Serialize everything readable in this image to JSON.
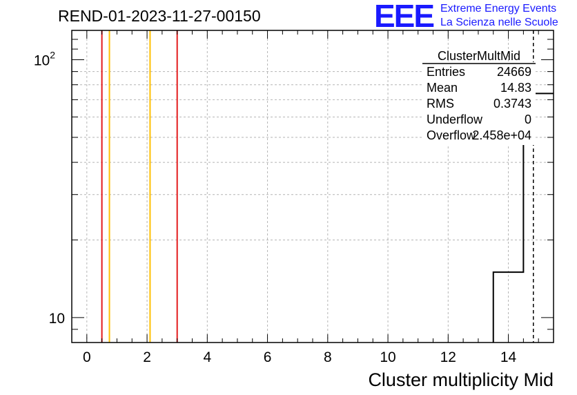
{
  "header": {
    "run_title": "REND-01-2023-11-27-00150",
    "logo_text": "EEE",
    "logo_line_1": "Extreme Energy Events",
    "logo_line_2": "La Scienza nelle Scuole"
  },
  "stats_box": {
    "title": "ClusterMultMid",
    "rows": [
      {
        "label": "Entries",
        "value": "24669"
      },
      {
        "label": "Mean",
        "value": "14.83"
      },
      {
        "label": "RMS",
        "value": "0.3743"
      },
      {
        "label": "Underflow",
        "value": "0"
      },
      {
        "label": "Overflow",
        "value": "2.458e+04"
      }
    ]
  },
  "chart_data": {
    "type": "histogram",
    "title": "REND-01-2023-11-27-00150",
    "xlabel": "Cluster multiplicity Mid",
    "ylabel": "",
    "xlim": [
      -0.5,
      15.5
    ],
    "ylim": [
      8,
      130
    ],
    "y_scale": "log",
    "grid": true,
    "x_ticks": [
      0,
      2,
      4,
      6,
      8,
      10,
      12,
      14
    ],
    "y_tick_labels": [
      {
        "value": 10,
        "label": "10"
      },
      {
        "value": 100,
        "label": "10",
        "exponent": "2"
      }
    ],
    "bins": [
      {
        "x_low": 13.5,
        "x_high": 14.5,
        "count": 15
      },
      {
        "x_low": 14.5,
        "x_high": 15.5,
        "count": 74
      }
    ],
    "vertical_lines": [
      {
        "x": 0.5,
        "color": "#e31a1c"
      },
      {
        "x": 0.75,
        "color": "#ffbf00"
      },
      {
        "x": 2.1,
        "color": "#ffbf00"
      },
      {
        "x": 3.0,
        "color": "#e31a1c"
      },
      {
        "x": 14.83,
        "color": "#000000",
        "style": "dashed"
      }
    ]
  }
}
